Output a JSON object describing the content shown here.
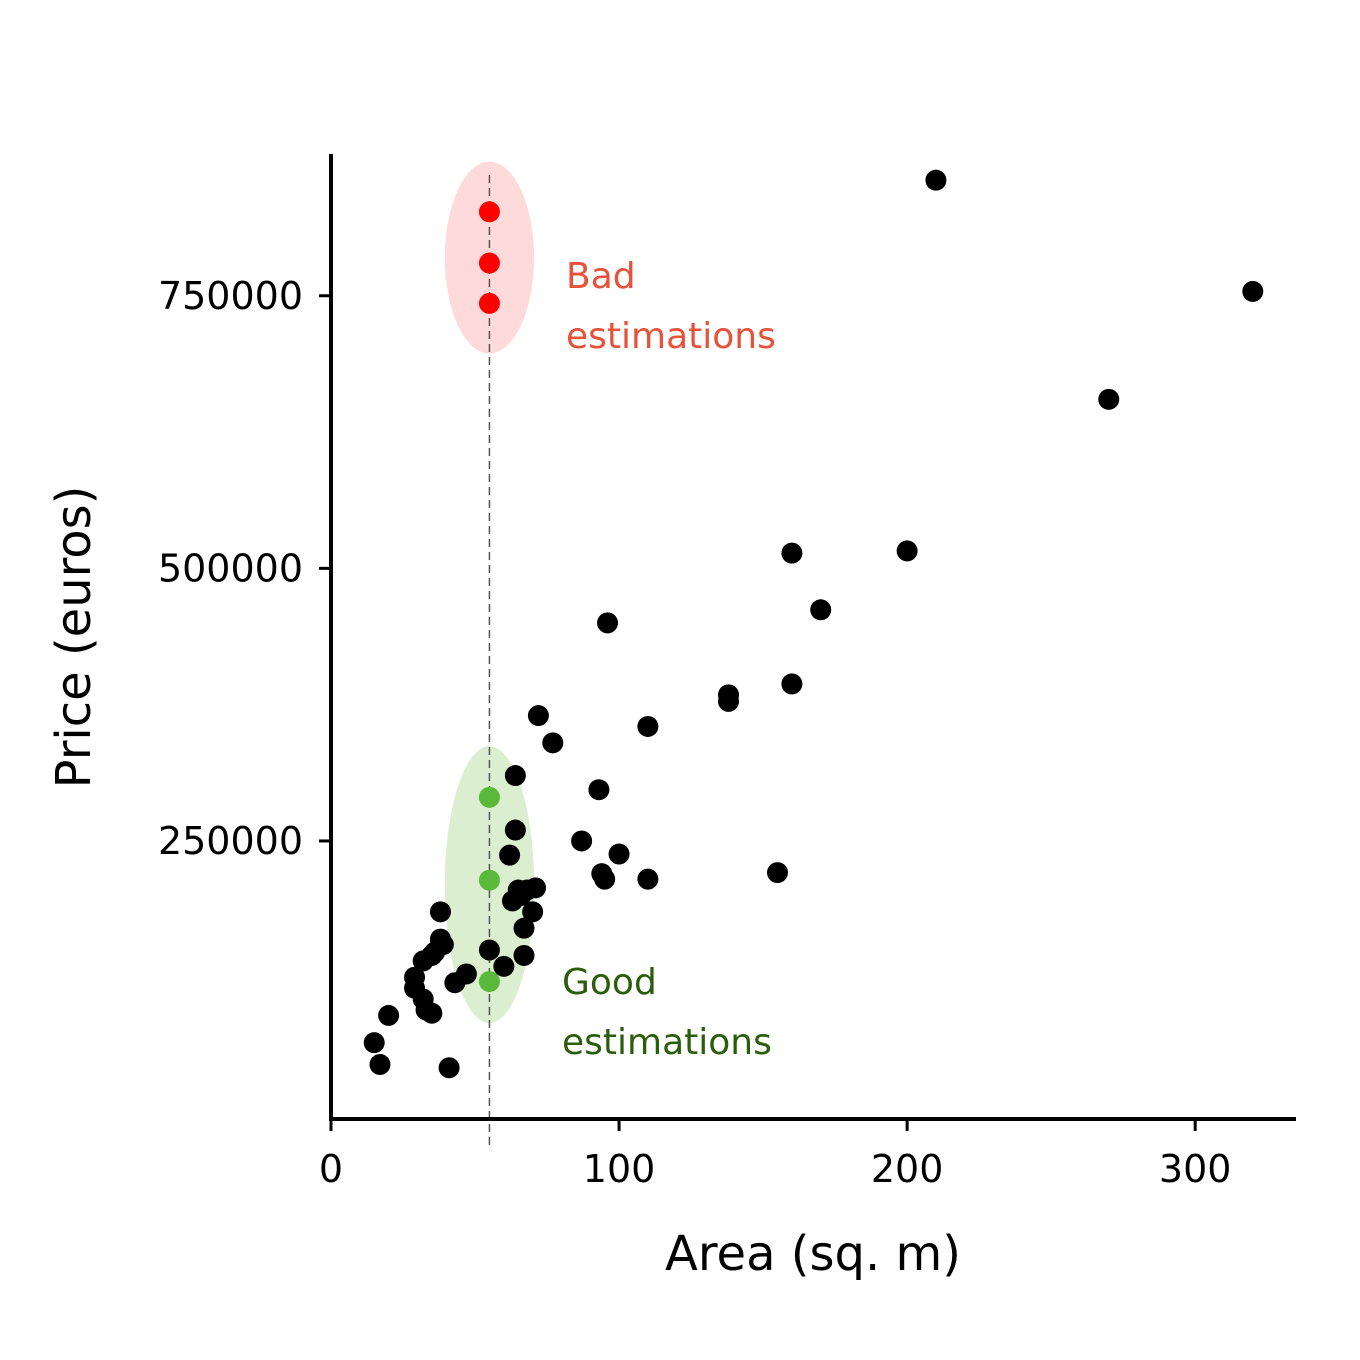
{
  "chart_data": {
    "type": "scatter",
    "xlabel": "Area (sq. m)",
    "ylabel": "Price (euros)",
    "xlim": [
      0,
      335
    ],
    "ylim": [
      -5000,
      880000
    ],
    "x_ticks": [
      0,
      100,
      200,
      300
    ],
    "y_ticks": [
      250000,
      500000,
      750000
    ],
    "grid": false,
    "reference_line": {
      "x": 55,
      "style": "dashed",
      "color": "#555555"
    },
    "series": [
      {
        "color": "#000000",
        "points": [
          {
            "x": 15,
            "y": 65000
          },
          {
            "x": 17,
            "y": 45000
          },
          {
            "x": 20,
            "y": 90000
          },
          {
            "x": 29,
            "y": 115000
          },
          {
            "x": 29,
            "y": 125000
          },
          {
            "x": 32,
            "y": 105000
          },
          {
            "x": 33,
            "y": 95000
          },
          {
            "x": 35,
            "y": 92000
          },
          {
            "x": 32,
            "y": 140000
          },
          {
            "x": 35,
            "y": 145000
          },
          {
            "x": 36,
            "y": 148000
          },
          {
            "x": 38,
            "y": 158000
          },
          {
            "x": 38,
            "y": 160000
          },
          {
            "x": 39,
            "y": 155000
          },
          {
            "x": 38,
            "y": 185000
          },
          {
            "x": 41,
            "y": 42000
          },
          {
            "x": 43,
            "y": 120000
          },
          {
            "x": 47,
            "y": 128000
          },
          {
            "x": 55,
            "y": 150000
          },
          {
            "x": 60,
            "y": 135000
          },
          {
            "x": 62,
            "y": 237000
          },
          {
            "x": 64,
            "y": 260000
          },
          {
            "x": 63,
            "y": 195000
          },
          {
            "x": 65,
            "y": 205000
          },
          {
            "x": 66,
            "y": 200000
          },
          {
            "x": 67,
            "y": 170000
          },
          {
            "x": 67,
            "y": 145000
          },
          {
            "x": 68,
            "y": 205000
          },
          {
            "x": 70,
            "y": 185000
          },
          {
            "x": 71,
            "y": 207000
          },
          {
            "x": 72,
            "y": 365000
          },
          {
            "x": 64,
            "y": 310000
          },
          {
            "x": 77,
            "y": 340000
          },
          {
            "x": 87,
            "y": 250000
          },
          {
            "x": 93,
            "y": 297000
          },
          {
            "x": 94,
            "y": 220000
          },
          {
            "x": 95,
            "y": 215000
          },
          {
            "x": 96,
            "y": 450000
          },
          {
            "x": 100,
            "y": 238000
          },
          {
            "x": 110,
            "y": 215000
          },
          {
            "x": 110,
            "y": 355000
          },
          {
            "x": 138,
            "y": 384000
          },
          {
            "x": 138,
            "y": 378000
          },
          {
            "x": 155,
            "y": 221000
          },
          {
            "x": 160,
            "y": 394000
          },
          {
            "x": 160,
            "y": 514000
          },
          {
            "x": 170,
            "y": 462000
          },
          {
            "x": 200,
            "y": 516000
          },
          {
            "x": 210,
            "y": 856000
          },
          {
            "x": 270,
            "y": 655000
          },
          {
            "x": 320,
            "y": 754000
          }
        ]
      },
      {
        "color": "#ff0000",
        "points": [
          {
            "x": 55,
            "y": 827000
          },
          {
            "x": 55,
            "y": 780000
          },
          {
            "x": 55,
            "y": 743000
          }
        ]
      },
      {
        "color": "#5ab83a",
        "points": [
          {
            "x": 55,
            "y": 290000
          },
          {
            "x": 55,
            "y": 214000
          },
          {
            "x": 55,
            "y": 121000
          }
        ]
      }
    ],
    "highlight_regions": [
      {
        "center": {
          "x": 55,
          "y": 785000
        },
        "radius": {
          "x": 15.5,
          "y": 88000
        },
        "fill": "#ffdada",
        "label_lines": [
          "Bad",
          "estimations"
        ],
        "label_color": "#e8513a"
      },
      {
        "center": {
          "x": 55,
          "y": 210000
        },
        "radius": {
          "x": 15.5,
          "y": 127000
        },
        "fill": "#dceed0",
        "label_lines": [
          "Good",
          "estimations"
        ],
        "label_color": "#2b5e0c"
      }
    ]
  }
}
